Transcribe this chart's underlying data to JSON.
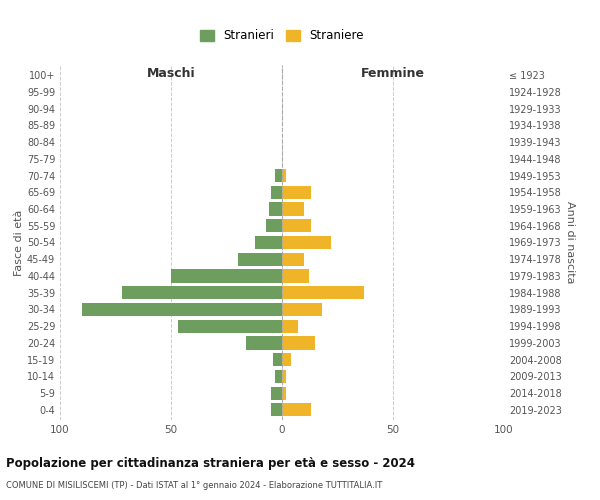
{
  "age_groups": [
    "0-4",
    "5-9",
    "10-14",
    "15-19",
    "20-24",
    "25-29",
    "30-34",
    "35-39",
    "40-44",
    "45-49",
    "50-54",
    "55-59",
    "60-64",
    "65-69",
    "70-74",
    "75-79",
    "80-84",
    "85-89",
    "90-94",
    "95-99",
    "100+"
  ],
  "birth_years": [
    "2019-2023",
    "2014-2018",
    "2009-2013",
    "2004-2008",
    "1999-2003",
    "1994-1998",
    "1989-1993",
    "1984-1988",
    "1979-1983",
    "1974-1978",
    "1969-1973",
    "1964-1968",
    "1959-1963",
    "1954-1958",
    "1949-1953",
    "1944-1948",
    "1939-1943",
    "1934-1938",
    "1929-1933",
    "1924-1928",
    "≤ 1923"
  ],
  "maschi": [
    5,
    5,
    3,
    4,
    16,
    47,
    90,
    72,
    50,
    20,
    12,
    7,
    6,
    5,
    3,
    0,
    0,
    0,
    0,
    0,
    0
  ],
  "femmine": [
    13,
    2,
    2,
    4,
    15,
    7,
    18,
    37,
    12,
    10,
    22,
    13,
    10,
    13,
    2,
    0,
    0,
    0,
    0,
    0,
    0
  ],
  "color_maschi": "#6e9e5f",
  "color_femmine": "#f0b429",
  "title": "Popolazione per cittadinanza straniera per età e sesso - 2024",
  "subtitle": "COMUNE DI MISILISCEMI (TP) - Dati ISTAT al 1° gennaio 2024 - Elaborazione TUTTITALIA.IT",
  "label_maschi": "Maschi",
  "label_femmine": "Femmine",
  "ylabel_left": "Fasce di età",
  "ylabel_right": "Anni di nascita",
  "legend_maschi": "Stranieri",
  "legend_femmine": "Straniere",
  "xlim": 100,
  "background_color": "#ffffff",
  "grid_color": "#cccccc"
}
